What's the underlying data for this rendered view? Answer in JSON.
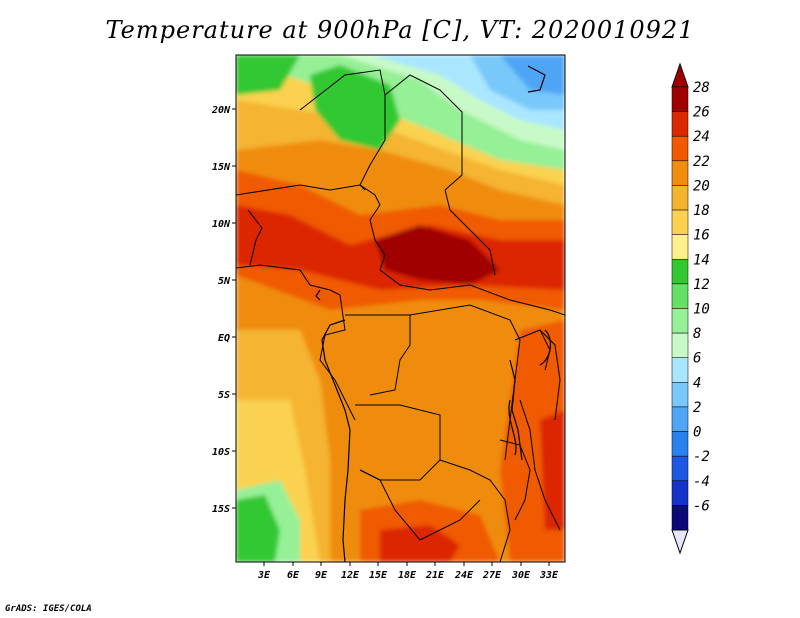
{
  "title": "Temperature at 900hPa [C], VT: 2020010921",
  "credit": "GrADS: IGES/COLA",
  "map": {
    "lon_labels": [
      "3E",
      "6E",
      "9E",
      "12E",
      "15E",
      "18E",
      "21E",
      "24E",
      "27E",
      "30E",
      "33E"
    ],
    "lat_labels": [
      "20N",
      "15N",
      "10N",
      "5N",
      "EQ",
      "5S",
      "10S",
      "15S"
    ]
  },
  "colorbar": {
    "levels": [
      "28",
      "26",
      "24",
      "22",
      "20",
      "18",
      "16",
      "14",
      "12",
      "10",
      "8",
      "6",
      "4",
      "2",
      "0",
      "-2",
      "-4",
      "-6"
    ],
    "colors": [
      "#a00000",
      "#dc2800",
      "#f05a00",
      "#f08c10",
      "#f5b430",
      "#fad250",
      "#fff08c",
      "#32c832",
      "#64e164",
      "#96f096",
      "#c8fac8",
      "#aae6ff",
      "#78c8fa",
      "#50a5f5",
      "#2882f0",
      "#1e5ae1",
      "#1432c8",
      "#0a0a78"
    ],
    "top_cap_color": "#a00000",
    "bottom_cap_color": "#e6e6ff"
  }
}
